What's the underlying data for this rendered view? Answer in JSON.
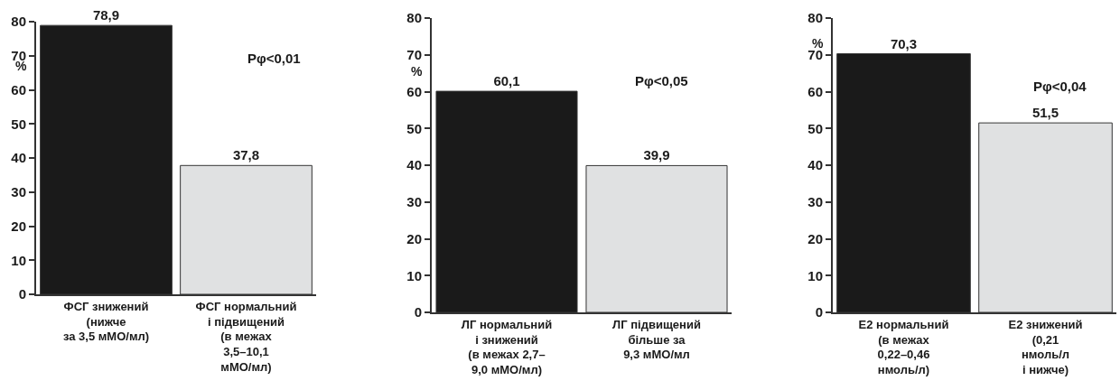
{
  "chart_data": [
    {
      "type": "bar",
      "categories": [
        "ФСГ знижений\n(нижче\nза 3,5 мМО/мл)",
        "ФСГ нормальний\nі підвищений\n(в межах\n3,5–10,1\nмМО/мл)"
      ],
      "values": [
        78.9,
        37.8
      ],
      "colors": [
        "#1a1a1a",
        "#e0e1e2"
      ],
      "value_labels": [
        "78,9",
        "37,8"
      ],
      "ylabel": "%",
      "ylim": [
        0,
        80
      ],
      "yticks": [
        0,
        10,
        20,
        30,
        40,
        50,
        60,
        70,
        80
      ],
      "annotations": [
        "Pφ<0,01"
      ]
    },
    {
      "type": "bar",
      "categories": [
        "ЛГ нормальний\nі знижений\n(в межах 2,7–\n9,0 мМО/мл)",
        "ЛГ підвищений\nбільше за\n9,3 мМО/мл"
      ],
      "values": [
        60.1,
        39.9
      ],
      "colors": [
        "#1a1a1a",
        "#e0e1e2"
      ],
      "value_labels": [
        "60,1",
        "39,9"
      ],
      "ylabel": "%",
      "ylim": [
        0,
        80
      ],
      "yticks": [
        0,
        10,
        20,
        30,
        40,
        50,
        60,
        70,
        80
      ],
      "annotations": [
        "Pφ<0,05"
      ]
    },
    {
      "type": "bar",
      "categories": [
        "E2 нормальний\n(в межах\n0,22–0,46\nнмоль/л)",
        "E2 знижений\n(0,21\nнмоль/л\nі нижче)"
      ],
      "values": [
        70.3,
        51.5
      ],
      "colors": [
        "#1a1a1a",
        "#e0e1e2"
      ],
      "value_labels": [
        "70,3",
        "51,5"
      ],
      "ylabel": "%",
      "ylim": [
        0,
        80
      ],
      "yticks": [
        0,
        10,
        20,
        30,
        40,
        50,
        60,
        70,
        80
      ],
      "annotations": [
        "Pφ<0,04"
      ]
    }
  ]
}
